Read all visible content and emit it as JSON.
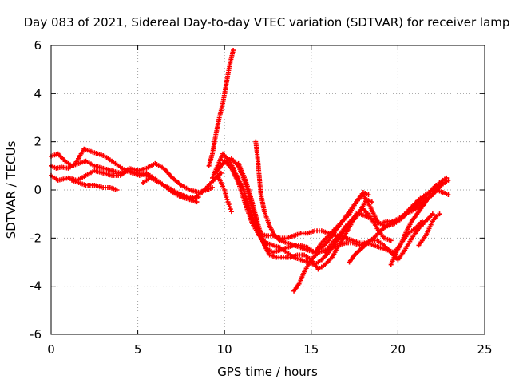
{
  "chart_data": {
    "type": "scatter",
    "title": "Day 083 of 2021, Sidereal Day-to-day VTEC variation (SDTVAR) for receiver lamp",
    "xlabel": "GPS time / hours",
    "ylabel": "SDTVAR / TECUs",
    "xlim": [
      0,
      25
    ],
    "ylim": [
      -6,
      6
    ],
    "xticks": [
      0,
      5,
      10,
      15,
      20,
      25
    ],
    "yticks": [
      -6,
      -4,
      -2,
      0,
      2,
      4,
      6
    ],
    "grid": true,
    "marker": "+",
    "color": "#ff0000",
    "series": [
      {
        "x": [
          0.0,
          0.3,
          0.6,
          1.0,
          1.4,
          1.9,
          2.3,
          2.7,
          3.1,
          3.5,
          3.9,
          4.3,
          4.7,
          5.1,
          5.5,
          5.9,
          6.3,
          6.7,
          7.1,
          7.5,
          7.9,
          8.3,
          8.7,
          9.1,
          9.5,
          9.8
        ],
        "y": [
          1.0,
          0.9,
          0.95,
          0.9,
          1.1,
          1.7,
          1.6,
          1.5,
          1.4,
          1.2,
          1.0,
          0.8,
          0.7,
          0.6,
          0.7,
          0.5,
          0.3,
          0.1,
          -0.1,
          -0.2,
          -0.3,
          -0.3,
          -0.1,
          0.2,
          0.5,
          0.7
        ]
      },
      {
        "x": [
          0.0,
          0.4,
          0.8,
          1.2,
          1.6,
          2.0,
          2.5,
          3.0,
          3.5,
          4.0,
          4.5,
          5.0,
          5.5,
          6.0,
          6.5,
          7.0,
          7.5,
          8.0,
          8.4
        ],
        "y": [
          1.4,
          1.5,
          1.2,
          1.0,
          1.1,
          1.2,
          1.0,
          0.9,
          0.8,
          0.7,
          0.8,
          0.7,
          0.6,
          0.4,
          0.2,
          0.0,
          -0.2,
          -0.4,
          -0.5
        ]
      },
      {
        "x": [
          0.0,
          0.4,
          1.0,
          1.5,
          2.0,
          2.5,
          3.0,
          3.5,
          4.0,
          4.5,
          5.0,
          5.5,
          6.0,
          6.5,
          7.0,
          7.5,
          8.0,
          8.5,
          9.0,
          9.3
        ],
        "y": [
          0.6,
          0.4,
          0.5,
          0.4,
          0.6,
          0.8,
          0.7,
          0.6,
          0.6,
          0.9,
          0.8,
          0.9,
          1.1,
          0.9,
          0.5,
          0.2,
          0.0,
          -0.1,
          0.0,
          0.1
        ]
      },
      {
        "x": [
          1.2,
          1.6,
          2.0,
          2.5,
          3.0,
          3.4,
          3.8
        ],
        "y": [
          0.4,
          0.3,
          0.2,
          0.2,
          0.1,
          0.1,
          0.0
        ]
      },
      {
        "x": [
          5.3,
          5.7,
          6.1,
          6.5,
          7.0,
          7.5,
          8.0,
          8.5
        ],
        "y": [
          0.3,
          0.5,
          0.4,
          0.2,
          -0.1,
          -0.3,
          -0.4,
          -0.3
        ]
      },
      {
        "x": [
          9.1,
          9.3,
          9.5,
          9.7,
          9.9,
          10.0,
          10.1,
          10.2,
          10.3,
          10.4,
          10.5
        ],
        "y": [
          1.0,
          1.5,
          2.3,
          3.0,
          3.6,
          4.0,
          4.4,
          4.8,
          5.2,
          5.5,
          5.8
        ]
      },
      {
        "x": [
          9.6,
          9.8,
          10.0,
          10.1,
          10.2,
          10.3,
          10.4
        ],
        "y": [
          0.6,
          0.3,
          0.0,
          -0.3,
          -0.5,
          -0.7,
          -0.9
        ]
      },
      {
        "x": [
          9.3,
          9.6,
          9.9,
          10.3,
          10.7,
          11.1,
          11.4,
          11.7,
          12.0,
          12.4,
          12.8,
          13.2,
          13.6,
          14.0,
          14.4,
          14.8,
          15.2,
          15.6,
          16.0,
          16.5,
          17.0,
          17.4,
          17.8,
          18.2,
          18.6,
          19.0,
          19.5,
          20.0,
          20.5,
          21.0,
          21.5,
          22.0,
          22.5,
          22.9
        ],
        "y": [
          0.5,
          1.0,
          1.5,
          1.2,
          0.6,
          0.0,
          -0.7,
          -1.3,
          -1.8,
          -1.9,
          -1.9,
          -2.0,
          -2.0,
          -1.9,
          -1.8,
          -1.8,
          -1.7,
          -1.7,
          -1.8,
          -1.9,
          -2.0,
          -2.1,
          -2.2,
          -2.2,
          -2.0,
          -1.7,
          -1.4,
          -1.2,
          -1.0,
          -0.8,
          -0.5,
          -0.2,
          0.2,
          0.4
        ]
      },
      {
        "x": [
          9.5,
          9.9,
          10.4,
          10.8,
          11.2,
          11.5,
          11.8,
          12.1,
          12.4,
          12.8,
          13.2,
          13.6,
          14.0,
          14.4,
          14.8,
          15.2,
          15.6,
          16.0,
          16.4,
          16.8,
          17.2,
          17.6,
          18.0,
          18.4,
          18.8,
          19.2,
          19.6,
          20.0,
          20.4,
          20.8,
          21.2,
          21.6,
          22.0,
          22.4,
          22.8
        ],
        "y": [
          0.7,
          1.1,
          1.3,
          1.0,
          0.3,
          -0.5,
          -1.3,
          -2.0,
          -2.4,
          -2.6,
          -2.5,
          -2.4,
          -2.3,
          -2.3,
          -2.4,
          -2.6,
          -2.2,
          -1.9,
          -1.6,
          -1.3,
          -1.0,
          -0.5,
          -0.2,
          -0.7,
          -1.3,
          -1.5,
          -1.4,
          -1.3,
          -1.0,
          -0.7,
          -0.4,
          -0.2,
          0.0,
          0.3,
          0.5
        ]
      },
      {
        "x": [
          10.0,
          10.4,
          10.8,
          11.2,
          11.6,
          12.0,
          12.4,
          12.8,
          13.2,
          13.6,
          14.0,
          14.4,
          14.8,
          15.2,
          15.6,
          16.0,
          16.4,
          16.8,
          17.2,
          17.6,
          18.0,
          18.4,
          18.8,
          19.2,
          19.6
        ],
        "y": [
          1.2,
          0.9,
          0.3,
          -0.6,
          -1.4,
          -1.9,
          -2.2,
          -2.3,
          -2.4,
          -2.6,
          -2.8,
          -2.9,
          -3.0,
          -3.1,
          -2.9,
          -2.6,
          -2.2,
          -1.8,
          -1.4,
          -1.0,
          -0.8,
          -1.1,
          -1.6,
          -2.0,
          -2.1
        ]
      },
      {
        "x": [
          10.8,
          11.1,
          11.4,
          11.7,
          12.0,
          12.3,
          12.6,
          13.0,
          13.4,
          13.8,
          14.2,
          14.6,
          15.0,
          15.4,
          15.8,
          16.2,
          16.6,
          17.0,
          17.4,
          17.8,
          18.2,
          18.5
        ],
        "y": [
          1.1,
          0.6,
          0.0,
          -0.8,
          -1.6,
          -2.3,
          -2.7,
          -2.8,
          -2.8,
          -2.8,
          -2.7,
          -2.7,
          -2.9,
          -3.3,
          -3.1,
          -2.8,
          -2.3,
          -1.8,
          -1.3,
          -0.9,
          -0.4,
          -0.5
        ]
      },
      {
        "x": [
          11.8,
          11.9,
          12.0,
          12.1,
          12.3,
          12.6,
          12.9,
          13.2,
          13.6,
          14.0,
          14.4,
          14.8,
          15.2,
          15.6,
          16.0,
          16.4,
          16.8,
          17.2,
          17.6,
          18.0,
          18.3
        ],
        "y": [
          2.0,
          1.4,
          0.6,
          -0.2,
          -0.9,
          -1.5,
          -1.9,
          -2.1,
          -2.2,
          -2.3,
          -2.4,
          -2.5,
          -2.6,
          -2.4,
          -2.1,
          -1.7,
          -1.3,
          -0.9,
          -0.5,
          -0.1,
          -0.2
        ]
      },
      {
        "x": [
          14.0,
          14.3,
          14.6,
          15.0,
          15.4,
          15.8,
          16.2,
          16.6,
          17.0,
          17.4,
          17.8,
          18.2,
          18.6,
          19.0,
          19.4,
          19.8,
          20.2,
          20.6,
          21.0,
          21.4
        ],
        "y": [
          -4.2,
          -3.9,
          -3.4,
          -2.9,
          -2.6,
          -2.5,
          -2.4,
          -2.3,
          -2.2,
          -2.2,
          -2.3,
          -2.2,
          -2.3,
          -2.4,
          -2.5,
          -2.6,
          -2.2,
          -1.8,
          -1.6,
          -1.3
        ]
      },
      {
        "x": [
          15.8,
          16.2,
          16.6,
          17.0,
          17.4,
          17.8,
          18.2,
          18.6,
          19.0,
          19.4,
          19.8,
          20.2,
          20.6,
          21.0,
          21.4,
          21.8,
          22.2,
          22.6,
          22.9
        ],
        "y": [
          -2.6,
          -2.2,
          -1.9,
          -1.5,
          -1.2,
          -1.0,
          -1.1,
          -1.3,
          -1.4,
          -1.3,
          -1.3,
          -1.2,
          -0.9,
          -0.6,
          -0.3,
          -0.1,
          0.0,
          -0.1,
          -0.2
        ]
      },
      {
        "x": [
          17.2,
          17.5,
          17.8,
          18.1,
          18.4,
          18.8,
          19.2,
          19.6,
          20.0,
          20.4,
          20.8,
          21.2,
          21.6,
          22.0
        ],
        "y": [
          -3.0,
          -2.7,
          -2.5,
          -2.3,
          -2.1,
          -2.1,
          -2.3,
          -2.6,
          -2.9,
          -2.5,
          -2.0,
          -1.6,
          -1.3,
          -1.0
        ]
      },
      {
        "x": [
          19.6,
          19.9,
          20.2,
          20.5,
          20.8,
          21.1,
          21.4,
          21.7
        ],
        "y": [
          -3.1,
          -2.6,
          -2.2,
          -1.7,
          -1.3,
          -1.0,
          -0.7,
          -0.4
        ]
      },
      {
        "x": [
          21.2,
          21.4,
          21.6,
          21.8,
          22.0,
          22.2,
          22.4
        ],
        "y": [
          -2.3,
          -2.1,
          -1.9,
          -1.6,
          -1.3,
          -1.1,
          -1.0
        ]
      },
      {
        "x": [
          19.4,
          19.8,
          20.2,
          20.6,
          21.0,
          21.4,
          21.8,
          22.2,
          22.6
        ],
        "y": [
          -1.5,
          -1.4,
          -1.2,
          -0.9,
          -0.7,
          -0.4,
          -0.1,
          0.2,
          0.3
        ]
      }
    ]
  }
}
